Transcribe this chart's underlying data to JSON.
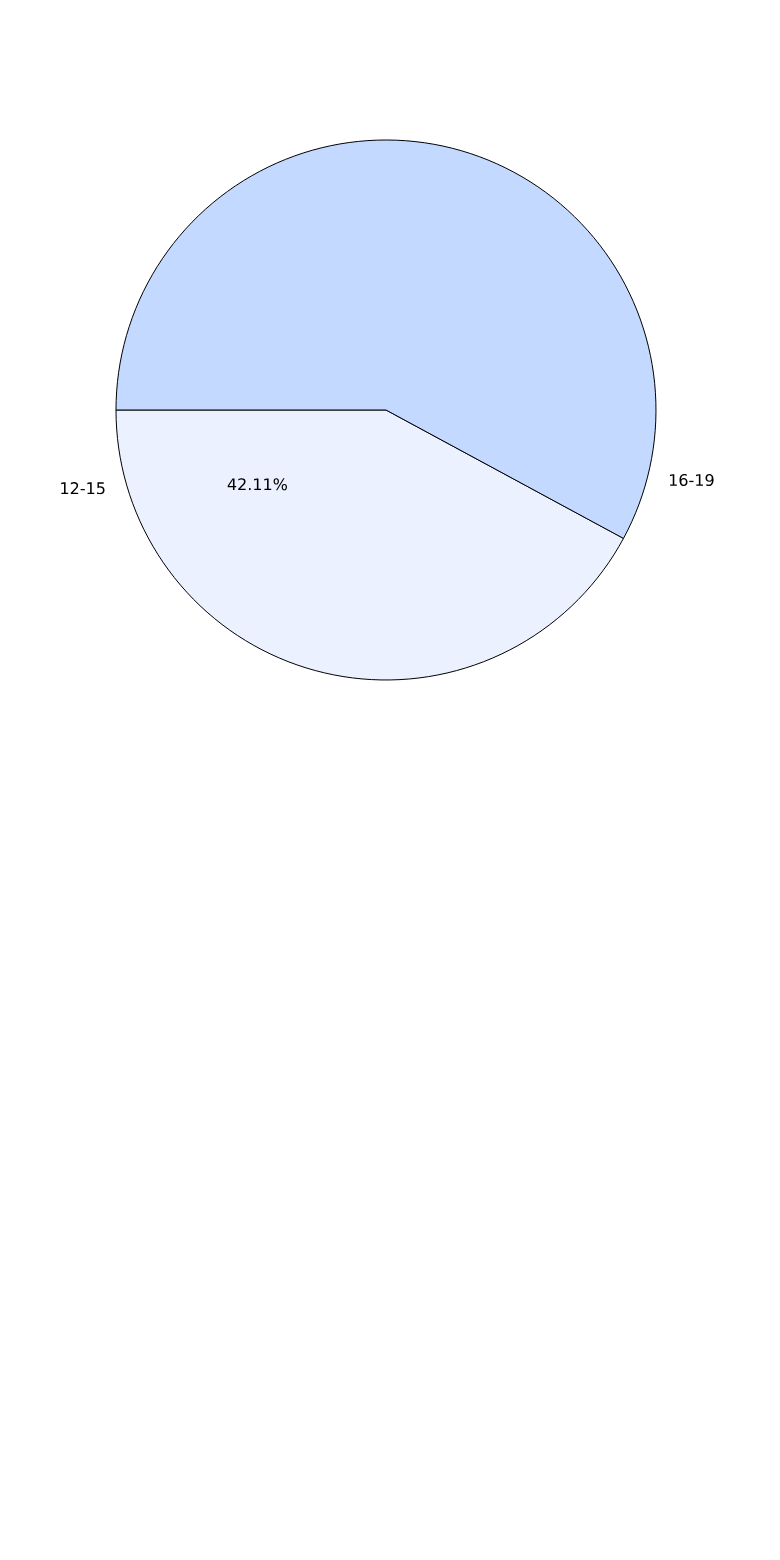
{
  "chart_data": {
    "type": "pie",
    "categories": [
      "12-15",
      "16-19"
    ],
    "values": [
      42.11,
      57.89
    ],
    "colors": [
      "#ebf1fe",
      "#c4d9ff"
    ],
    "value_labels": [
      "42.11%",
      null
    ]
  }
}
